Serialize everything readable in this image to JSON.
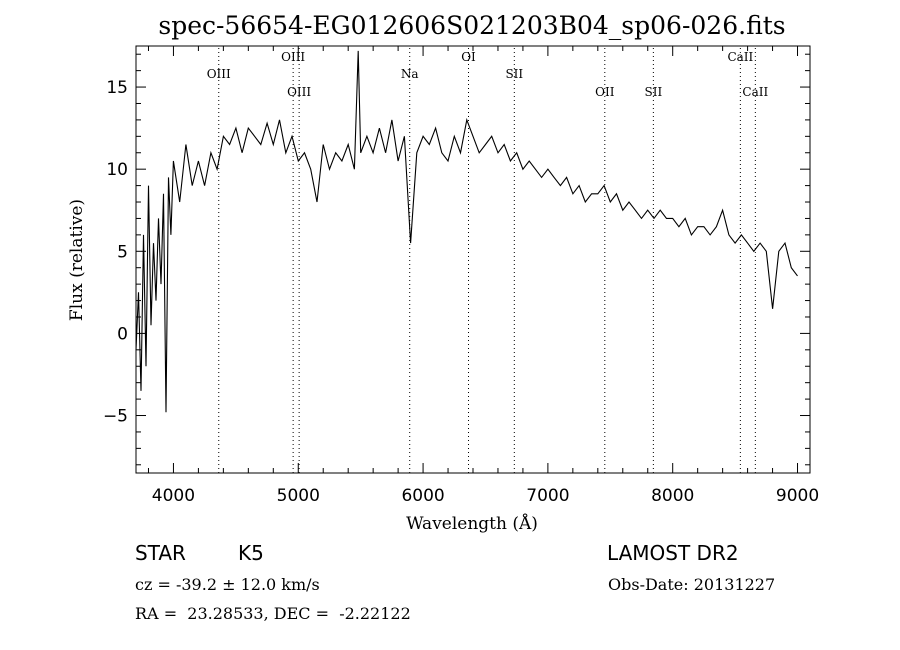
{
  "chart_data": {
    "type": "line",
    "title": "spec-56654-EG012606S021203B04_sp06-026.fits",
    "xlabel": "Wavelength (Å)",
    "ylabel": "Flux (relative)",
    "xlim": [
      3700,
      9100
    ],
    "ylim": [
      -8.5,
      17.5
    ],
    "xticks": [
      4000,
      5000,
      6000,
      7000,
      8000,
      9000
    ],
    "yticks": [
      -5,
      0,
      5,
      10,
      15
    ],
    "grid": false,
    "series": [
      {
        "values_note": "",
        "x": [
          3700,
          3720,
          3740,
          3760,
          3780,
          3800,
          3820,
          3840,
          3860,
          3880,
          3900,
          3920,
          3940,
          3960,
          3980,
          4000,
          4050,
          4100,
          4150,
          4200,
          4250,
          4300,
          4350,
          4400,
          4450,
          4500,
          4550,
          4600,
          4650,
          4700,
          4750,
          4800,
          4850,
          4900,
          4950,
          5000,
          5050,
          5100,
          5150,
          5200,
          5250,
          5300,
          5350,
          5400,
          5450,
          5480,
          5500,
          5550,
          5600,
          5650,
          5700,
          5750,
          5800,
          5850,
          5900,
          5950,
          6000,
          6050,
          6100,
          6150,
          6200,
          6250,
          6300,
          6350,
          6400,
          6450,
          6500,
          6550,
          6600,
          6650,
          6700,
          6750,
          6800,
          6850,
          6900,
          6950,
          7000,
          7050,
          7100,
          7150,
          7200,
          7250,
          7300,
          7350,
          7400,
          7450,
          7500,
          7550,
          7600,
          7650,
          7700,
          7750,
          7800,
          7850,
          7900,
          7950,
          8000,
          8050,
          8100,
          8150,
          8200,
          8250,
          8300,
          8350,
          8400,
          8450,
          8500,
          8550,
          8600,
          8650,
          8700,
          8750,
          8800,
          8850,
          8900,
          8950,
          9000
        ],
        "y": [
          -1.0,
          2.5,
          -3.5,
          6.0,
          -2.0,
          9.0,
          0.5,
          5.5,
          2.0,
          7.0,
          3.0,
          8.5,
          -4.8,
          9.5,
          6.0,
          10.5,
          8.0,
          11.5,
          9.0,
          10.5,
          9.0,
          11.0,
          10.0,
          12.0,
          11.5,
          12.5,
          11.0,
          12.5,
          12.0,
          11.5,
          12.8,
          11.5,
          13.0,
          11.0,
          12.0,
          10.5,
          11.0,
          10.0,
          8.0,
          11.5,
          10.0,
          11.0,
          10.5,
          11.5,
          10.0,
          17.2,
          11.0,
          12.0,
          11.0,
          12.5,
          11.0,
          13.0,
          10.5,
          12.0,
          5.5,
          11.0,
          12.0,
          11.5,
          12.5,
          11.0,
          10.5,
          12.0,
          11.0,
          13.0,
          12.0,
          11.0,
          11.5,
          12.0,
          11.0,
          11.5,
          10.5,
          11.0,
          10.0,
          10.5,
          10.0,
          9.5,
          10.0,
          9.5,
          9.0,
          9.5,
          8.5,
          9.0,
          8.0,
          8.5,
          8.5,
          9.0,
          8.0,
          8.5,
          7.5,
          8.0,
          7.5,
          7.0,
          7.5,
          7.0,
          7.5,
          7.0,
          7.0,
          6.5,
          7.0,
          6.0,
          6.5,
          6.5,
          6.0,
          6.5,
          7.5,
          6.0,
          5.5,
          6.0,
          5.5,
          5.0,
          5.5,
          5.0,
          1.5,
          5.0,
          5.5,
          4.0,
          3.5
        ]
      }
    ],
    "lines": [
      {
        "label": "OIII",
        "wavelength": 4363,
        "row": 1
      },
      {
        "label": "OIII",
        "wavelength": 4959,
        "row": 0
      },
      {
        "label": "OIII",
        "wavelength": 5007,
        "row": 2
      },
      {
        "label": "Na",
        "wavelength": 5893,
        "row": 1
      },
      {
        "label": "OI",
        "wavelength": 6364,
        "row": 0
      },
      {
        "label": "SII",
        "wavelength": 6731,
        "row": 1
      },
      {
        "label": "OII",
        "wavelength": 7456,
        "row": 2
      },
      {
        "label": "SII",
        "wavelength": 7845,
        "row": 2
      },
      {
        "label": "CaII",
        "wavelength": 8542,
        "row": 0
      },
      {
        "label": "CaII",
        "wavelength": 8662,
        "row": 2
      }
    ]
  },
  "info": {
    "object_class": "STAR",
    "subclass": "K5",
    "survey": "LAMOST DR2",
    "cz": "cz = -39.2 ± 12.0 km/s",
    "obs_date": "Obs-Date: 20131227",
    "radec": "RA =  23.28533, DEC =  -2.22122"
  }
}
